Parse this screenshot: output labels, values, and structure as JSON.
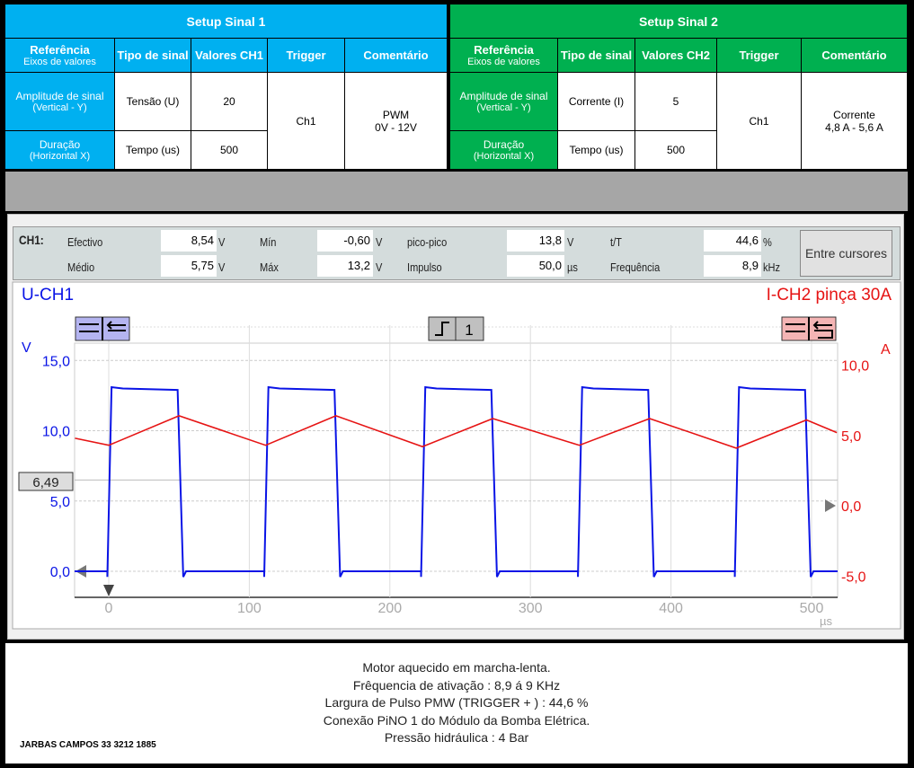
{
  "setup1": {
    "title": "Setup Sinal 1",
    "col_ref": "Referência",
    "col_ref_sub": "Eixos de valores",
    "col_tipo": "Tipo de sinal",
    "col_val": "Valores CH1",
    "col_trig": "Trigger",
    "col_com": "Comentário",
    "row1_label": "Amplitude de sinal",
    "row1_sub": "(Vertical - Y)",
    "row1_tipo": "Tensão (U)",
    "row1_val": "20",
    "row2_label": "Duração",
    "row2_sub": "(Horizontal X)",
    "row2_tipo": "Tempo (us)",
    "row2_val": "500",
    "trigger": "Ch1",
    "comment1": "PWM",
    "comment2": "0V - 12V"
  },
  "setup2": {
    "title": "Setup Sinal 2",
    "col_ref": "Referência",
    "col_ref_sub": "Eixos de valores",
    "col_tipo": "Tipo de sinal",
    "col_val": "Valores CH2",
    "col_trig": "Trigger",
    "col_com": "Comentário",
    "row1_label": "Amplitude de sinal",
    "row1_sub": "(Vertical - Y)",
    "row1_tipo": "Corrente (I)",
    "row1_val": "5",
    "row2_label": "Duração",
    "row2_sub": "(Horizontal X)",
    "row2_tipo": "Tempo (us)",
    "row2_val": "500",
    "trigger": "Ch1",
    "comment1": "Corrente",
    "comment2": "4,8 A - 5,6 A"
  },
  "measurements": {
    "channel": "CH1:",
    "efectivo_label": "Efectivo",
    "efectivo": "8,54",
    "efectivo_unit": "V",
    "medio_label": "Médio",
    "medio": "5,75",
    "medio_unit": "V",
    "min_label": "Mín",
    "min": "-0,60",
    "min_unit": "V",
    "max_label": "Máx",
    "max": "13,2",
    "max_unit": "V",
    "pp_label": "pico-pico",
    "pp": "13,8",
    "pp_unit": "V",
    "impulso_label": "Impulso",
    "impulso": "50,0",
    "impulso_unit": "µs",
    "tT_label": "t/T",
    "tT": "44,6",
    "tT_unit": "%",
    "freq_label": "Frequência",
    "freq": "8,9",
    "freq_unit": "kHz",
    "button": "Entre cursores"
  },
  "chart_data": {
    "type": "line",
    "title_left": "U-CH1",
    "title_right": "I-CH2 pinça 30A",
    "ylabel_left": "V",
    "ylabel_right": "A",
    "xunit": "µs",
    "xlim": [
      -24,
      518
    ],
    "ylim_left": [
      -2,
      17
    ],
    "ylim_right": [
      -7,
      12
    ],
    "xticks": [
      "0",
      "100",
      "200",
      "300",
      "400",
      "500"
    ],
    "yticks_left": [
      "15,0",
      "10,0",
      "5,0",
      "0,0"
    ],
    "yticks_right": [
      "10,0",
      "5,0",
      "0,0",
      "-5,0"
    ],
    "cursor_value": "6,49",
    "trigger_label": "1",
    "colors": {
      "ch1": "#0a14e6",
      "ch2": "#e61414"
    },
    "series": [
      {
        "name": "U-CH1 (V)",
        "pulse_rise_us": [
          0,
          111.6,
          223.2,
          334.8,
          446.4
        ],
        "pulse_width_us": 50,
        "high_start": 13.1,
        "high_end": 12.9,
        "low": 0.0
      },
      {
        "name": "I-CH2 (A)",
        "x": [
          -24,
          0,
          50,
          111.6,
          161.6,
          223.2,
          273.2,
          334.8,
          384.8,
          446.4,
          496.4,
          518
        ],
        "y": [
          4.8,
          4.3,
          6.4,
          4.3,
          6.4,
          4.2,
          6.2,
          4.3,
          6.2,
          4.1,
          6.1,
          5.2
        ]
      }
    ]
  },
  "notes": {
    "lines": [
      "Motor aquecido em marcha-lenta.",
      "Frêquencia de ativação : 8,9   á 9 KHz",
      "Largura de Pulso PMW (TRIGGER + ) : 44,6 %",
      "Conexão PiNO 1 do Módulo da Bomba Elétrica.",
      "Pressão hidráulica : 4 Bar"
    ],
    "signature": "JARBAS CAMPOS 33    3212 1885"
  }
}
